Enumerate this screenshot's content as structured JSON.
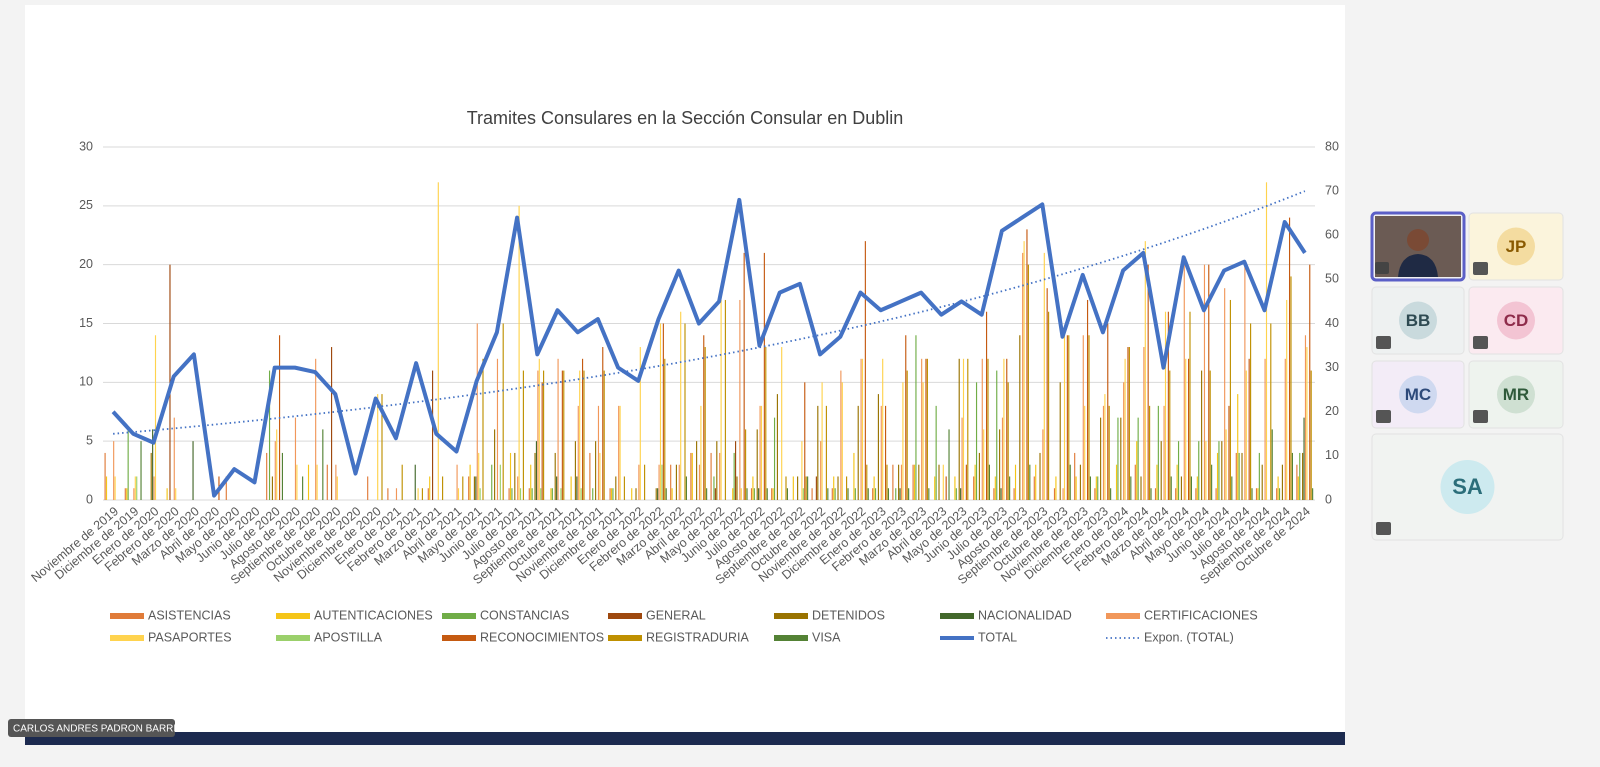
{
  "chart_data": {
    "type": "bar",
    "title": "Tramites Consulares en la Sección Consular en Dublin",
    "categories": [
      "Noviembre de 2019",
      "Diciembre de 2019",
      "Enero de 2020",
      "Febrero de 2020",
      "Marzo de 2020",
      "Abril de 2020",
      "Mayo de 2020",
      "Junio de 2020",
      "Julio de 2020",
      "Agosto de 2020",
      "Septiembre de 2020",
      "Octubre de 2020",
      "Noviembre de 2020",
      "Diciembre de 2020",
      "Enero de 2021",
      "Febrero de 2021",
      "Marzo de 2021",
      "Abril de 2021",
      "Mayo de 2021",
      "Junio de 2021",
      "Julio de 2021",
      "Agosto de 2021",
      "Septiembre de 2021",
      "Octubre de 2021",
      "Noviembre de 2021",
      "Diciembre de 2021",
      "Enero de 2022",
      "Febrero de 2022",
      "Marzo de 2022",
      "Abril de 2022",
      "Mayo de 2022",
      "Junio de 2022",
      "Julio de 2022",
      "Agosto de 2022",
      "Septiembre de 2022",
      "Octubre de 2022",
      "Noviembre de 2022",
      "Diciembre de 2022",
      "Enero de 2023",
      "Febrero de 2023",
      "Marzo de 2023",
      "Abril de 2023",
      "Mayo de 2023",
      "Junio de 2023",
      "Julio de 2023",
      "Agosto de 2023",
      "Septiembre de 2023",
      "Octubre de 2023",
      "Noviembre de 2023",
      "Diciembre de 2023",
      "Enero de 2024",
      "Febrero de 2024",
      "Marzo de 2024",
      "Abril de 2024",
      "Mayo de 2024",
      "Junio de 2024",
      "Julio de 2024",
      "Agosto de 2024",
      "Septiembre de 2024",
      "Octubre de 2024"
    ],
    "series": [
      {
        "name": "ASISTENCIAS",
        "color": "#e07b39",
        "values": [
          4,
          1,
          0,
          0,
          0,
          0,
          2,
          0,
          4,
          0,
          0,
          3,
          0,
          2,
          1,
          0,
          1,
          0,
          2,
          0,
          1,
          1,
          0,
          0,
          4,
          1,
          0,
          0,
          3,
          4,
          4,
          0,
          1,
          1,
          0,
          1,
          1,
          0,
          1,
          3,
          3,
          0,
          0,
          2,
          1,
          1,
          2,
          1,
          4,
          1,
          0,
          3,
          1,
          1,
          1,
          1,
          4,
          1,
          1,
          3
        ]
      },
      {
        "name": "AUTENTICACIONES",
        "color": "#f5c518",
        "values": [
          2,
          1,
          0,
          1,
          0,
          0,
          0,
          0,
          0,
          0,
          3,
          0,
          0,
          0,
          0,
          0,
          2,
          0,
          3,
          0,
          4,
          3,
          1,
          2,
          0,
          1,
          1,
          0,
          1,
          4,
          0,
          1,
          2,
          1,
          2,
          0,
          2,
          4,
          2,
          0,
          3,
          2,
          2,
          3,
          2,
          3,
          3,
          2,
          2,
          2,
          3,
          5,
          3,
          3,
          2,
          4,
          9,
          1,
          2,
          2
        ]
      },
      {
        "name": "CONSTANCIAS",
        "color": "#70ad47",
        "values": [
          0,
          6,
          0,
          0,
          0,
          0,
          0,
          0,
          11,
          0,
          0,
          0,
          0,
          0,
          0,
          0,
          0,
          0,
          0,
          3,
          1,
          1,
          1,
          0,
          1,
          1,
          0,
          0,
          0,
          0,
          2,
          4,
          1,
          7,
          0,
          0,
          1,
          1,
          1,
          1,
          14,
          8,
          1,
          10,
          11,
          0,
          0,
          0,
          0,
          2,
          7,
          7,
          8,
          5,
          5,
          5,
          4,
          4,
          1,
          4
        ]
      },
      {
        "name": "GENERAL",
        "color": "#9e480e",
        "values": [
          0,
          0,
          0,
          20,
          0,
          0,
          0,
          0,
          0,
          0,
          0,
          13,
          0,
          0,
          0,
          0,
          11,
          0,
          0,
          0,
          0,
          0,
          0,
          0,
          0,
          0,
          0,
          0,
          0,
          0,
          1,
          5,
          0,
          0,
          0,
          2,
          0,
          0,
          0,
          0,
          0,
          0,
          0,
          0,
          0,
          0,
          0,
          0,
          0,
          0,
          0,
          0,
          0,
          0,
          0,
          0,
          0,
          0,
          0,
          0
        ]
      },
      {
        "name": "DETENIDOS",
        "color": "#997300",
        "values": [
          0,
          0,
          4,
          0,
          0,
          0,
          0,
          0,
          2,
          0,
          0,
          0,
          0,
          0,
          0,
          0,
          0,
          0,
          2,
          6,
          4,
          4,
          4,
          5,
          5,
          2,
          1,
          1,
          3,
          5,
          5,
          2,
          6,
          9,
          2,
          8,
          2,
          8,
          9,
          3,
          3,
          3,
          12,
          4,
          6,
          14,
          4,
          10,
          3,
          7,
          7,
          2,
          5,
          2,
          11,
          5,
          4,
          3,
          3,
          4
        ]
      },
      {
        "name": "NACIONALIDAD",
        "color": "#43682b",
        "values": [
          0,
          0,
          6,
          0,
          5,
          0,
          0,
          0,
          0,
          0,
          0,
          0,
          0,
          0,
          0,
          3,
          0,
          0,
          2,
          0,
          0,
          5,
          2,
          2,
          0,
          0,
          0,
          1,
          0,
          0,
          0,
          0,
          1,
          0,
          0,
          0,
          0,
          0,
          0,
          1,
          0,
          0,
          1,
          0,
          1,
          0,
          0,
          0,
          0,
          0,
          0,
          0,
          0,
          0,
          0,
          0,
          0,
          0,
          0,
          7
        ]
      },
      {
        "name": "CERTIFICACIONES",
        "color": "#f1975a",
        "values": [
          5,
          1,
          2,
          7,
          0,
          0,
          0,
          0,
          5,
          7,
          12,
          3,
          0,
          0,
          1,
          0,
          0,
          3,
          15,
          12,
          2,
          11,
          12,
          8,
          8,
          8,
          3,
          3,
          3,
          3,
          4,
          17,
          8,
          0,
          0,
          5,
          11,
          12,
          8,
          3,
          12,
          0,
          7,
          12,
          7,
          21,
          6,
          1,
          14,
          8,
          10,
          13,
          8,
          20,
          20,
          18,
          20,
          12,
          12,
          14
        ]
      },
      {
        "name": "PASAPORTES",
        "color": "#ffd34e",
        "values": [
          2,
          2,
          14,
          1,
          0,
          0,
          0,
          0,
          6,
          3,
          3,
          2,
          0,
          9,
          0,
          1,
          27,
          1,
          4,
          0,
          25,
          12,
          0,
          11,
          4,
          8,
          13,
          15,
          16,
          8,
          17,
          1,
          8,
          13,
          5,
          10,
          10,
          12,
          12,
          10,
          10,
          3,
          12,
          6,
          12,
          22,
          21,
          14,
          8,
          9,
          12,
          22,
          16,
          12,
          5,
          6,
          11,
          27,
          17,
          13
        ]
      },
      {
        "name": "APOSTILLA",
        "color": "#9bd06b",
        "values": [
          0,
          2,
          0,
          0,
          0,
          0,
          0,
          0,
          0,
          0,
          0,
          0,
          0,
          0,
          0,
          0,
          0,
          0,
          1,
          3,
          1,
          1,
          1,
          1,
          0,
          0,
          0,
          3,
          0,
          0,
          0,
          0,
          0,
          0,
          1,
          0,
          0,
          0,
          0,
          0,
          0,
          0,
          0,
          0,
          0,
          0,
          0,
          0,
          0,
          0,
          0,
          0,
          0,
          0,
          0,
          0,
          0,
          0,
          0,
          0
        ]
      },
      {
        "name": "RECONOCIMIENTOS",
        "color": "#c55a11",
        "values": [
          0,
          0,
          0,
          0,
          0,
          2,
          0,
          0,
          14,
          0,
          0,
          0,
          0,
          0,
          0,
          0,
          0,
          0,
          0,
          0,
          0,
          10,
          11,
          12,
          13,
          0,
          0,
          15,
          0,
          14,
          0,
          21,
          21,
          0,
          10,
          0,
          0,
          22,
          8,
          14,
          12,
          2,
          3,
          16,
          12,
          23,
          18,
          14,
          17,
          15,
          13,
          20,
          16,
          12,
          20,
          8,
          12,
          0,
          24,
          20
        ]
      },
      {
        "name": "REGISTRADURIA",
        "color": "#bf9000",
        "values": [
          0,
          0,
          0,
          0,
          0,
          0,
          0,
          0,
          0,
          0,
          0,
          0,
          0,
          9,
          3,
          1,
          2,
          2,
          12,
          15,
          11,
          11,
          11,
          11,
          11,
          2,
          3,
          12,
          15,
          13,
          17,
          6,
          13,
          2,
          2,
          8,
          2,
          3,
          3,
          11,
          12,
          0,
          12,
          12,
          10,
          20,
          16,
          14,
          14,
          8,
          13,
          8,
          11,
          16,
          11,
          17,
          15,
          15,
          19,
          11
        ]
      },
      {
        "name": "VISA",
        "color": "#548235",
        "values": [
          0,
          5,
          0,
          0,
          0,
          0,
          0,
          0,
          4,
          2,
          6,
          0,
          0,
          0,
          0,
          0,
          0,
          0,
          0,
          0,
          0,
          0,
          0,
          0,
          0,
          0,
          0,
          1,
          2,
          1,
          0,
          1,
          1,
          1,
          2,
          1,
          1,
          1,
          1,
          1,
          1,
          6,
          0,
          3,
          2,
          3,
          0,
          3,
          2,
          1,
          2,
          1,
          2,
          2,
          3,
          2,
          1,
          6,
          4,
          1
        ]
      },
      {
        "name": "TOTAL",
        "color": "#4472c4",
        "type": "line",
        "axis": "y2",
        "values": [
          20,
          15,
          13,
          28,
          33,
          1,
          7,
          4,
          30,
          30,
          29,
          24,
          6,
          23,
          14,
          31,
          15,
          11,
          27,
          38,
          64,
          33,
          43,
          38,
          41,
          30,
          27,
          41,
          52,
          40,
          45,
          68,
          35,
          47,
          49,
          33,
          37,
          47,
          43,
          45,
          47,
          42,
          45,
          42,
          61,
          64,
          67,
          37,
          51,
          38,
          52,
          56,
          30,
          55,
          43,
          52,
          54,
          43,
          63,
          56
        ]
      }
    ],
    "trendline": {
      "name": "Expon. (TOTAL)",
      "color": "#4472c4",
      "start": 15,
      "end": 70,
      "axis": "y2"
    },
    "ylim": [
      0,
      30
    ],
    "yticks": [
      0,
      5,
      10,
      15,
      20,
      25,
      30
    ],
    "y2lim": [
      0,
      80
    ],
    "y2ticks": [
      0,
      10,
      20,
      30,
      40,
      50,
      60,
      70,
      80
    ],
    "grid": true
  },
  "meeting": {
    "presenter": "CARLOS ANDRES PADRON BARRIOS",
    "participants": [
      "JP",
      "BB",
      "CD",
      "MC",
      "MR",
      "SA"
    ]
  }
}
